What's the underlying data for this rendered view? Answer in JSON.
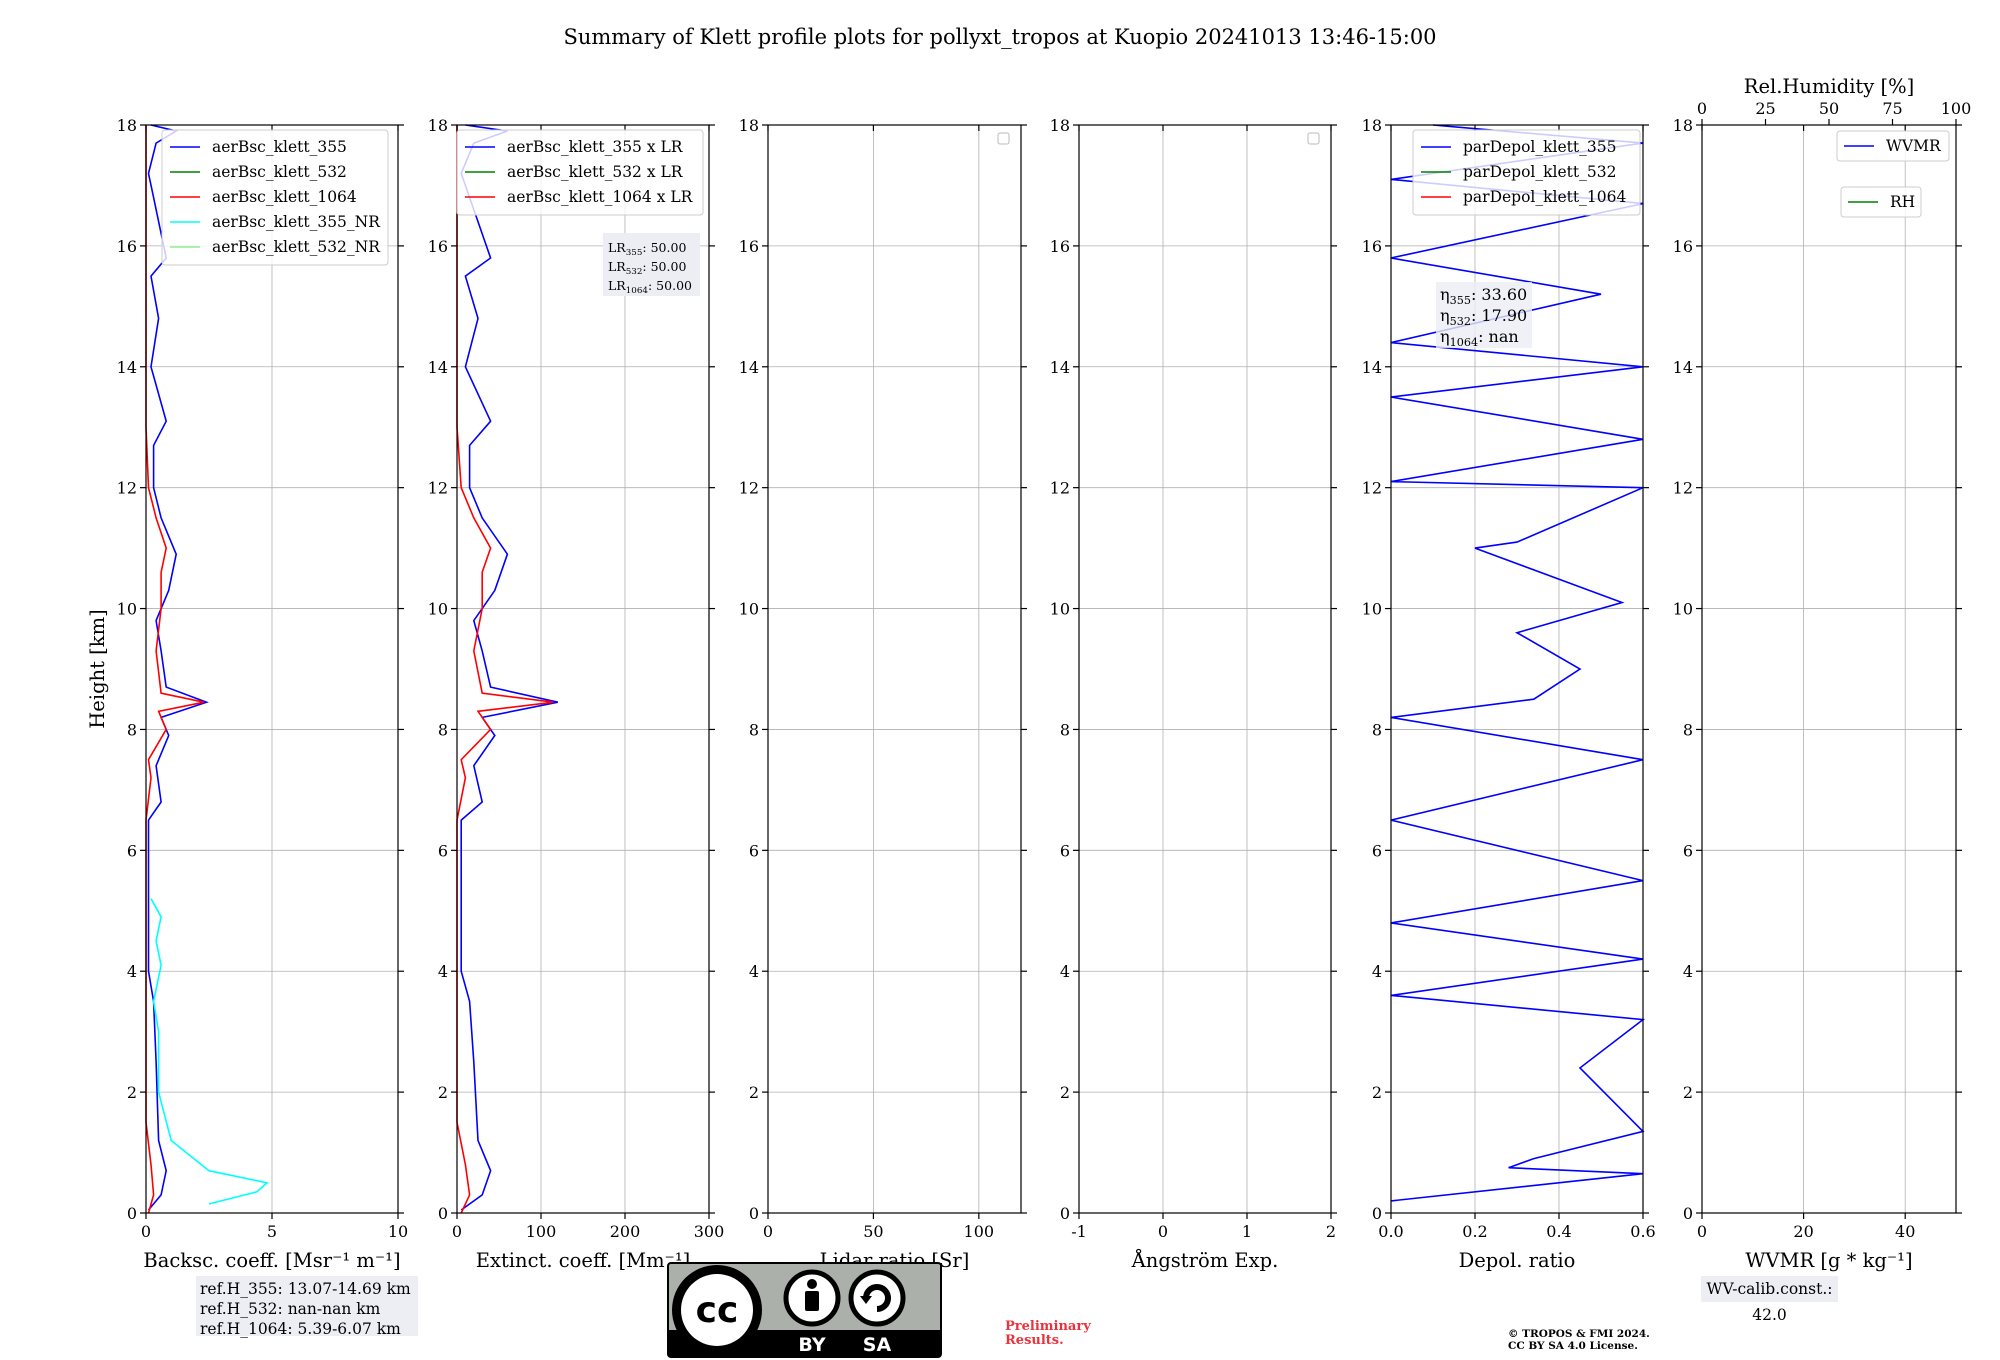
{
  "title": "Summary of Klett profile plots for pollyxt_tropos at Kuopio 20241013 13:46-15:00",
  "y_axis": {
    "label": "Height [km]",
    "range": [
      0,
      18
    ],
    "ticks": [
      0,
      2,
      4,
      6,
      8,
      10,
      12,
      14,
      16,
      18
    ]
  },
  "notes": {
    "ref_h": [
      "ref.H_355: 13.07-14.69 km",
      "ref.H_532: nan-nan km",
      "ref.H_1064: 5.39-6.07 km"
    ],
    "wv_calib": "WV-calib.const.: 42.0",
    "preliminary": [
      "Preliminary",
      "Results."
    ],
    "copyright": [
      "© TROPOS & FMI 2024.",
      "CC BY SA 4.0 License."
    ],
    "license_badge": {
      "cc": "cc",
      "by": "BY",
      "sa": "SA"
    }
  },
  "colors": {
    "blue": "#0000ff",
    "green": "#008000",
    "red": "#ff0000",
    "cyan": "#00ffff",
    "lightgreen": "#90ee90",
    "grid": "#b0b0b0",
    "textbox": "#eceef4",
    "prelim": "#e8323c"
  },
  "chart_data": [
    {
      "type": "line",
      "xlabel": "Backsc. coeff. [Msr⁻¹ m⁻¹]",
      "xlim": [
        0,
        10
      ],
      "xticks": [
        0,
        5,
        10
      ],
      "legend_location": "upper-right",
      "series": [
        {
          "name": "aerBsc_klett_355",
          "color": "#0000ff",
          "points": [
            [
              0.1,
              0.05
            ],
            [
              0.6,
              0.3
            ],
            [
              0.8,
              0.7
            ],
            [
              0.5,
              1.2
            ],
            [
              0.4,
              2.5
            ],
            [
              0.3,
              3.5
            ],
            [
              0.1,
              4.0
            ],
            [
              0.1,
              6.5
            ],
            [
              0.6,
              6.8
            ],
            [
              0.4,
              7.4
            ],
            [
              0.9,
              7.9
            ],
            [
              0.6,
              8.2
            ],
            [
              2.4,
              8.45
            ],
            [
              0.8,
              8.7
            ],
            [
              0.6,
              9.3
            ],
            [
              0.4,
              9.8
            ],
            [
              0.9,
              10.3
            ],
            [
              1.2,
              10.9
            ],
            [
              0.6,
              11.5
            ],
            [
              0.3,
              12.0
            ],
            [
              0.3,
              12.7
            ],
            [
              0.8,
              13.1
            ],
            [
              0.2,
              14.0
            ],
            [
              0.5,
              14.8
            ],
            [
              0.2,
              15.5
            ],
            [
              0.8,
              15.8
            ],
            [
              0.3,
              16.8
            ],
            [
              0.1,
              17.2
            ],
            [
              0.4,
              17.7
            ],
            [
              1.2,
              17.9
            ],
            [
              0.2,
              18.0
            ]
          ]
        },
        {
          "name": "aerBsc_klett_532",
          "color": "#008000",
          "points": []
        },
        {
          "name": "aerBsc_klett_1064",
          "color": "#ff0000",
          "points": [
            [
              0.1,
              0.0
            ],
            [
              0.3,
              0.3
            ],
            [
              0.2,
              0.8
            ],
            [
              0.0,
              1.5
            ],
            [
              0.0,
              4.0
            ],
            [
              0.0,
              6.5
            ],
            [
              0.2,
              7.2
            ],
            [
              0.1,
              7.5
            ],
            [
              0.8,
              8.0
            ],
            [
              0.5,
              8.3
            ],
            [
              2.3,
              8.45
            ],
            [
              0.6,
              8.6
            ],
            [
              0.4,
              9.3
            ],
            [
              0.6,
              10.0
            ],
            [
              0.6,
              10.6
            ],
            [
              0.8,
              11.0
            ],
            [
              0.4,
              11.5
            ],
            [
              0.1,
              12.0
            ],
            [
              0.0,
              13.0
            ],
            [
              0.0,
              18.0
            ]
          ]
        },
        {
          "name": "aerBsc_klett_355_NR",
          "color": "#00ffff",
          "points": [
            [
              2.5,
              0.15
            ],
            [
              4.4,
              0.35
            ],
            [
              4.8,
              0.5
            ],
            [
              2.5,
              0.7
            ],
            [
              1.0,
              1.2
            ],
            [
              0.5,
              2.0
            ],
            [
              0.5,
              3.0
            ],
            [
              0.3,
              3.5
            ],
            [
              0.6,
              4.1
            ],
            [
              0.4,
              4.5
            ],
            [
              0.6,
              4.9
            ],
            [
              0.2,
              5.2
            ]
          ]
        },
        {
          "name": "aerBsc_klett_532_NR",
          "color": "#90ee90",
          "points": []
        }
      ]
    },
    {
      "type": "line",
      "xlabel": "Extinct. coeff. [Mm⁻¹]",
      "xlim": [
        0,
        300
      ],
      "xticks": [
        0,
        100,
        200,
        300
      ],
      "legend_location": "upper-right",
      "lidar_ratios": [
        "LR355: 50.00",
        "LR532: 50.00",
        "LR1064: 50.00"
      ],
      "series": [
        {
          "name": "aerBsc_klett_355 x LR",
          "color": "#0000ff",
          "points": [
            [
              5,
              0.05
            ],
            [
              30,
              0.3
            ],
            [
              40,
              0.7
            ],
            [
              25,
              1.2
            ],
            [
              20,
              2.5
            ],
            [
              15,
              3.5
            ],
            [
              5,
              4.0
            ],
            [
              5,
              6.5
            ],
            [
              30,
              6.8
            ],
            [
              20,
              7.4
            ],
            [
              45,
              7.9
            ],
            [
              30,
              8.2
            ],
            [
              120,
              8.45
            ],
            [
              40,
              8.7
            ],
            [
              30,
              9.3
            ],
            [
              20,
              9.8
            ],
            [
              45,
              10.3
            ],
            [
              60,
              10.9
            ],
            [
              30,
              11.5
            ],
            [
              15,
              12.0
            ],
            [
              15,
              12.7
            ],
            [
              40,
              13.1
            ],
            [
              10,
              14.0
            ],
            [
              25,
              14.8
            ],
            [
              10,
              15.5
            ],
            [
              40,
              15.8
            ],
            [
              15,
              16.8
            ],
            [
              5,
              17.2
            ],
            [
              20,
              17.7
            ],
            [
              60,
              17.9
            ],
            [
              10,
              18.0
            ]
          ]
        },
        {
          "name": "aerBsc_klett_532 x LR",
          "color": "#008000",
          "points": []
        },
        {
          "name": "aerBsc_klett_1064 x LR",
          "color": "#ff0000",
          "points": [
            [
              5,
              0.0
            ],
            [
              15,
              0.3
            ],
            [
              10,
              0.8
            ],
            [
              0,
              1.5
            ],
            [
              0,
              4.0
            ],
            [
              0,
              6.5
            ],
            [
              10,
              7.2
            ],
            [
              5,
              7.5
            ],
            [
              40,
              8.0
            ],
            [
              25,
              8.3
            ],
            [
              115,
              8.45
            ],
            [
              30,
              8.6
            ],
            [
              20,
              9.3
            ],
            [
              30,
              10.0
            ],
            [
              30,
              10.6
            ],
            [
              40,
              11.0
            ],
            [
              20,
              11.5
            ],
            [
              5,
              12.0
            ],
            [
              0,
              13.0
            ],
            [
              0,
              18.0
            ]
          ]
        }
      ]
    },
    {
      "type": "line",
      "xlabel": "Lidar ratio [Sr]",
      "xlim": [
        0,
        120
      ],
      "xticks": [
        0,
        50,
        100
      ],
      "series": []
    },
    {
      "type": "line",
      "xlabel": "Ångström Exp.",
      "xlim": [
        -1,
        2
      ],
      "xticks": [
        -1,
        0,
        1,
        2
      ],
      "series": []
    },
    {
      "type": "line",
      "xlabel": "Depol. ratio",
      "xlim": [
        0,
        0.6
      ],
      "xticks": [
        0.0,
        0.2,
        0.4,
        0.6
      ],
      "legend_location": "upper-right",
      "eta": [
        "η355: 33.60",
        "η532: 17.90",
        "η1064: nan"
      ],
      "series": [
        {
          "name": "parDepol_klett_355",
          "color": "#0000ff",
          "points": [
            [
              0.0,
              0.2
            ],
            [
              0.6,
              0.65
            ],
            [
              0.28,
              0.75
            ],
            [
              0.34,
              0.9
            ],
            [
              0.6,
              1.35
            ],
            [
              0.45,
              2.4
            ],
            [
              0.6,
              3.2
            ],
            [
              0.0,
              3.6
            ],
            [
              0.6,
              4.2
            ],
            [
              0.0,
              4.8
            ],
            [
              0.6,
              5.5
            ],
            [
              0.0,
              6.5
            ],
            [
              0.6,
              7.5
            ],
            [
              0.0,
              8.2
            ],
            [
              0.34,
              8.5
            ],
            [
              0.45,
              9.0
            ],
            [
              0.3,
              9.6
            ],
            [
              0.55,
              10.1
            ],
            [
              0.2,
              11.0
            ],
            [
              0.3,
              11.1
            ],
            [
              0.6,
              12.0
            ],
            [
              0.0,
              12.1
            ],
            [
              0.6,
              12.8
            ],
            [
              0.0,
              13.5
            ],
            [
              0.6,
              14.0
            ],
            [
              0.0,
              14.4
            ],
            [
              0.5,
              15.2
            ],
            [
              0.0,
              15.8
            ],
            [
              0.6,
              16.7
            ],
            [
              0.0,
              17.1
            ],
            [
              0.6,
              17.7
            ],
            [
              0.1,
              18.0
            ]
          ]
        },
        {
          "name": "parDepol_klett_532",
          "color": "#008000",
          "points": []
        },
        {
          "name": "parDepol_klett_1064",
          "color": "#ff0000",
          "points": []
        }
      ]
    },
    {
      "type": "line",
      "xlabel": "WVMR [g * kg⁻¹]",
      "xlim": [
        0,
        50
      ],
      "xticks": [
        0,
        20,
        40
      ],
      "top_axis": {
        "label": "Rel.Humidity [%]",
        "range": [
          0,
          100
        ],
        "ticks": [
          0,
          25,
          50,
          75,
          100
        ]
      },
      "series": [
        {
          "name": "WVMR",
          "color": "#0000ff",
          "points": []
        },
        {
          "name": "RH",
          "color": "#008000",
          "points": []
        }
      ]
    }
  ]
}
